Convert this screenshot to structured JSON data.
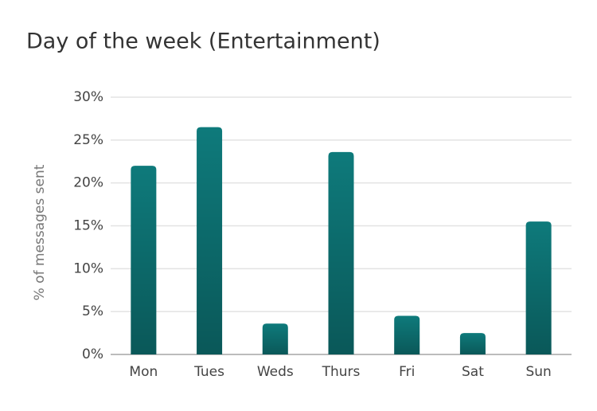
{
  "chart_data": {
    "type": "bar",
    "title": "Day of the week (Entertainment)",
    "y_label": "% of messages sent",
    "categories": [
      "Mon",
      "Tues",
      "Weds",
      "Thurs",
      "Fri",
      "Sat",
      "Sun"
    ],
    "values": [
      22,
      26.5,
      3.6,
      23.6,
      4.5,
      2.5,
      15.5
    ],
    "color": "#0e7a7b",
    "ylim": [
      0,
      30
    ],
    "yticks": [
      {
        "value": 0,
        "label": "0%"
      },
      {
        "value": 5,
        "label": "5%"
      },
      {
        "value": 10,
        "label": "10%"
      },
      {
        "value": 15,
        "label": "15%"
      },
      {
        "value": 20,
        "label": "20%"
      },
      {
        "value": 25,
        "label": "25%"
      },
      {
        "value": 30,
        "label": "30%"
      }
    ],
    "grid": true
  }
}
